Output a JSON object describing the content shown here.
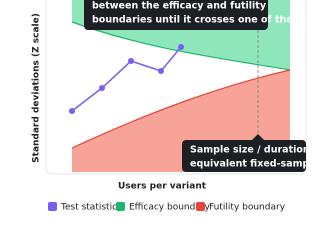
{
  "axes": {
    "y_label": "Standard deviations (Z scale)",
    "x_label": "Users per variant"
  },
  "callouts": [
    {
      "lines": [
        "between the efficacy and futility",
        "boundaries until it crosses one of them."
      ]
    },
    {
      "lines": [
        "Sample size / duration of an",
        "equivalent fixed-sample test."
      ]
    }
  ],
  "legend": [
    "Test statistic",
    "Efficacy boundary",
    "Futility boundary"
  ]
}
